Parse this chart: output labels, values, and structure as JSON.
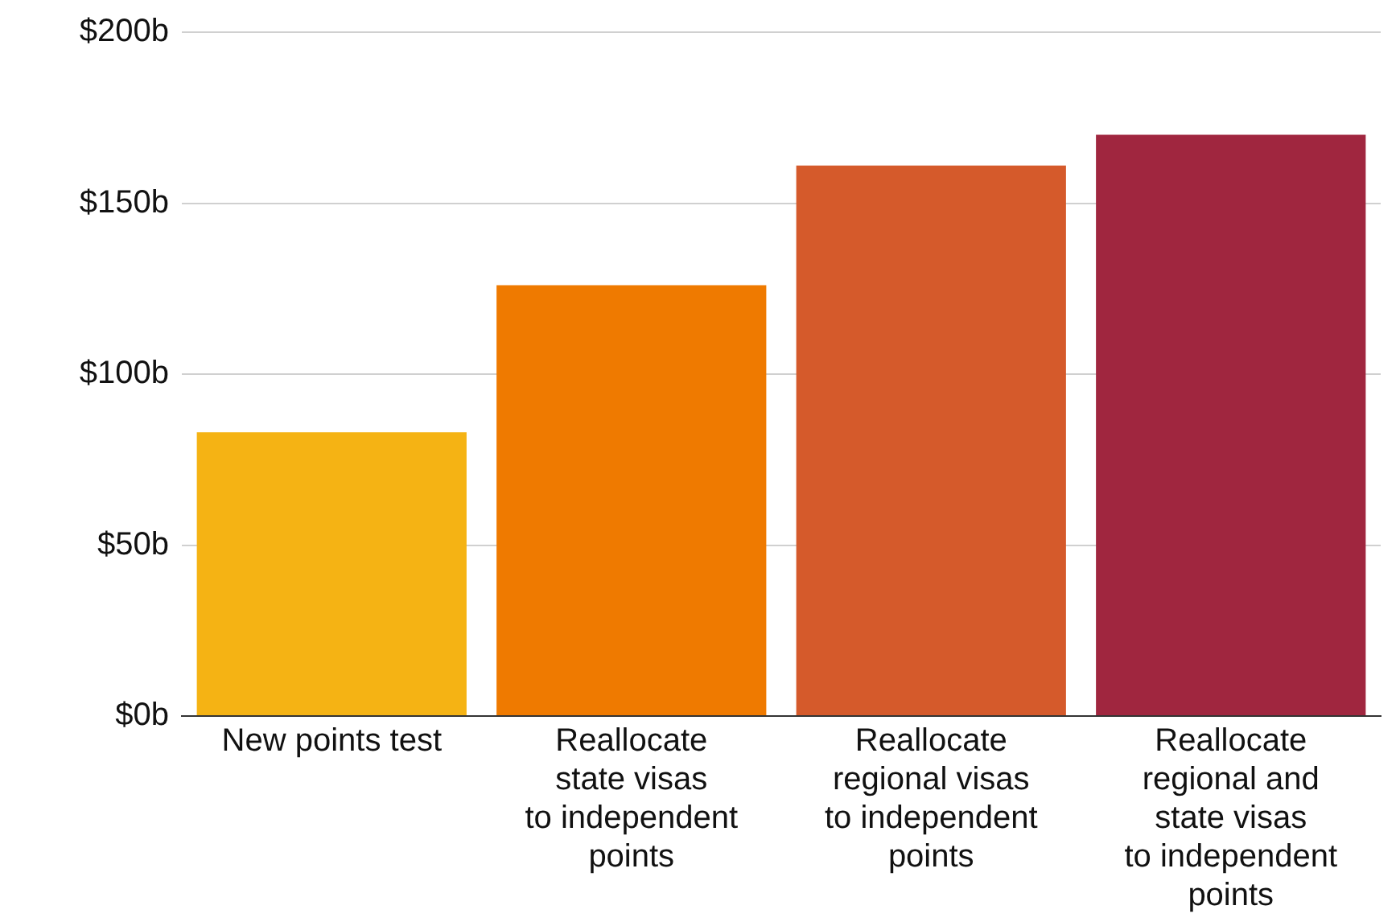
{
  "chart_data": {
    "type": "bar",
    "categories": [
      "New points test",
      "Reallocate\nstate visas\nto independent\npoints",
      "Reallocate\nregional visas\nto independent\npoints",
      "Reallocate\nregional and\nstate visas\nto independent\npoints"
    ],
    "values": [
      83,
      126,
      161,
      170
    ],
    "colors": [
      "#f5b314",
      "#ef7a00",
      "#d55a2b",
      "#a0263f"
    ],
    "ylim": [
      0,
      200
    ],
    "yticks": [
      {
        "value": 0,
        "label": "$0b"
      },
      {
        "value": 50,
        "label": "$50b"
      },
      {
        "value": 100,
        "label": "$100b"
      },
      {
        "value": 150,
        "label": "$150b"
      },
      {
        "value": 200,
        "label": "$200b"
      }
    ],
    "grid": "y"
  }
}
